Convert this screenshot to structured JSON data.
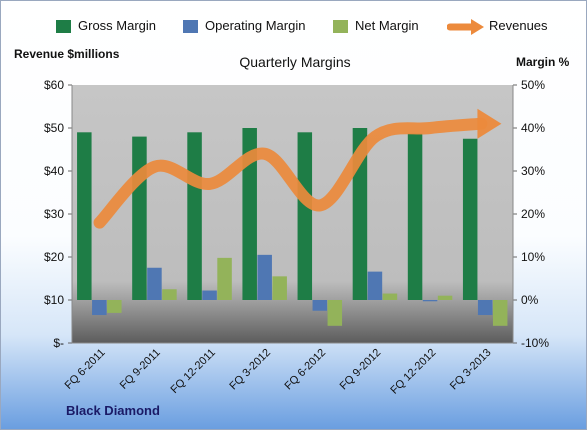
{
  "legend": {
    "gross_margin": "Gross Margin",
    "operating_margin": "Operating Margin",
    "net_margin": "Net Margin",
    "revenues": "Revenues"
  },
  "colors": {
    "gross": "#1e7d46",
    "operating": "#4f77b3",
    "net": "#93b35a",
    "revenue": "#ec8a3c"
  },
  "company": "Black Diamond",
  "chart_data": {
    "type": "bar",
    "title": "Quarterly Margins",
    "ylabel_left": "Revenue $millions",
    "ylabel_right": "Margin %",
    "categories": [
      "FQ 6-2011",
      "FQ 9-2011",
      "FQ 12-2011",
      "FQ 3-2012",
      "FQ 6-2012",
      "FQ 9-2012",
      "FQ 12-2012",
      "FQ 3-2013"
    ],
    "left_axis": {
      "min": 0,
      "max": 60,
      "ticks": [
        "$-",
        "$10",
        "$20",
        "$30",
        "$40",
        "$50",
        "$60"
      ]
    },
    "right_axis": {
      "min": -10,
      "max": 50,
      "ticks": [
        "-10%",
        "0%",
        "10%",
        "20%",
        "30%",
        "40%",
        "50%"
      ]
    },
    "series": [
      {
        "name": "Gross Margin",
        "axis": "right",
        "type": "bar",
        "values": [
          39,
          38,
          39,
          40,
          39,
          40,
          38.7,
          37.5
        ]
      },
      {
        "name": "Operating Margin",
        "axis": "right",
        "type": "bar",
        "values": [
          -3.5,
          7.5,
          2.2,
          10.5,
          -2.5,
          6.6,
          -0.3,
          -3.5
        ]
      },
      {
        "name": "Net Margin",
        "axis": "right",
        "type": "bar",
        "values": [
          -3,
          2.5,
          9.8,
          5.5,
          -6,
          1.5,
          1,
          -6
        ]
      },
      {
        "name": "Revenues",
        "axis": "left",
        "type": "line",
        "values": [
          28,
          41,
          37,
          44,
          32,
          48,
          50,
          51
        ]
      }
    ],
    "legend_position": "top",
    "grid": false
  }
}
